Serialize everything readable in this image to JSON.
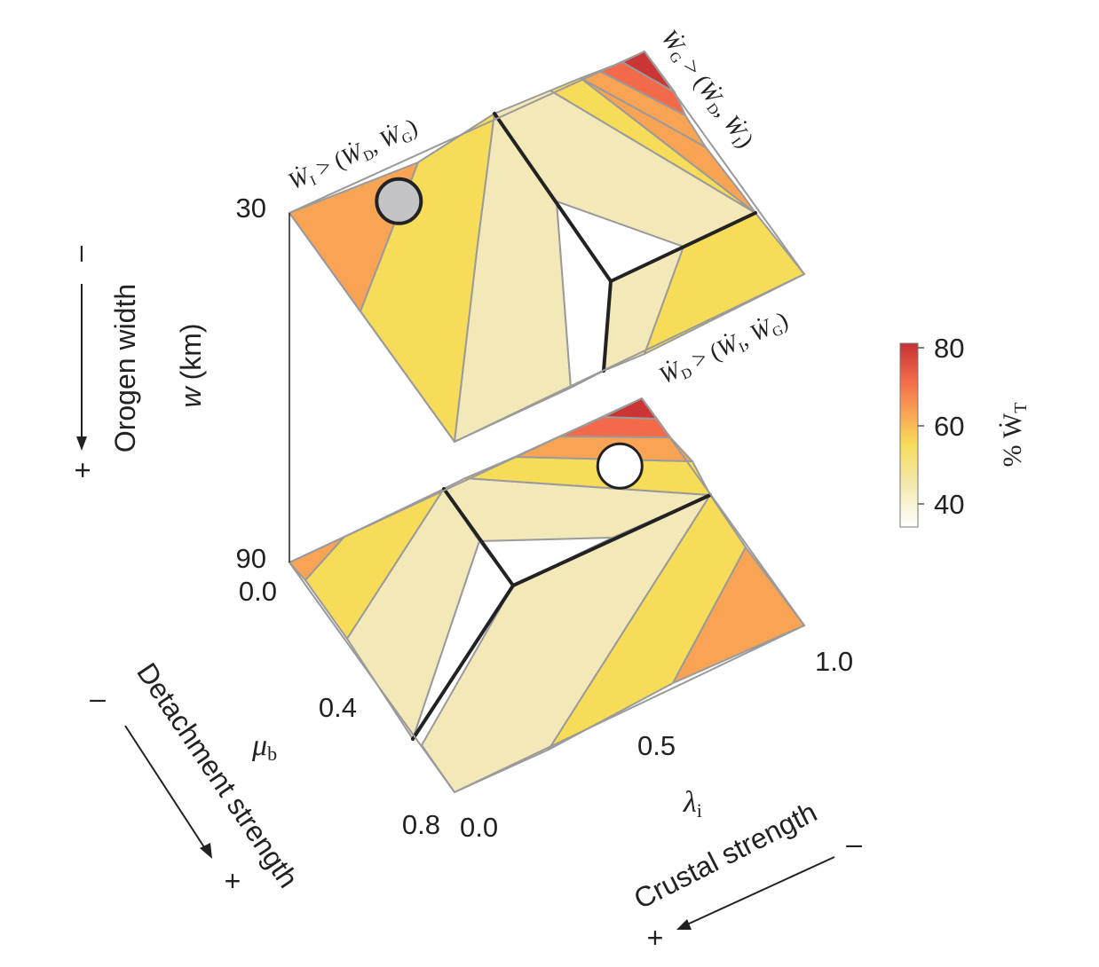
{
  "chart_data": {
    "type": "heatmap",
    "colorbar": {
      "title": "% Ẇ",
      "title_subscript": "T",
      "ticks": [
        "80",
        "60",
        "40"
      ],
      "range": [
        35,
        80
      ],
      "colors": [
        "#f5edc8",
        "#f2e8b8",
        "#f7dc5a",
        "#f9a455",
        "#f26a4a",
        "#cc3535"
      ]
    },
    "axes": {
      "w": {
        "symbol": "w",
        "unit": "(km)",
        "name": "Orogen width",
        "ticks": [
          "30",
          "90"
        ],
        "minus": "–",
        "plus": "+"
      },
      "mu_b": {
        "symbol": "μ",
        "subscript": "b",
        "name": "Detachment strength",
        "ticks": [
          "0.0",
          "0.4",
          "0.8"
        ],
        "minus": "–",
        "plus": "+"
      },
      "lambda_i": {
        "symbol": "λ",
        "subscript": "i",
        "name": "Crustal strength",
        "ticks": [
          "0.0",
          "0.5",
          "1.0"
        ],
        "minus": "–",
        "plus": "+"
      }
    },
    "regions": {
      "internal": {
        "lhs": "Ẇ",
        "lhs_sub": "I",
        "op": " > (",
        "a": "Ẇ",
        "a_sub": "D",
        "b": "Ẇ",
        "b_sub": "G",
        "close": ")"
      },
      "gravitational": {
        "lhs": "Ẇ",
        "lhs_sub": "G",
        "op": " > (",
        "a": "Ẇ",
        "a_sub": "D",
        "b": "Ẇ",
        "b_sub": "I",
        "close": ")"
      },
      "detachment": {
        "lhs": "Ẇ",
        "lhs_sub": "D",
        "op": " > (",
        "a": "Ẇ",
        "a_sub": "I",
        "b": "Ẇ",
        "b_sub": "G",
        "close": ")"
      }
    },
    "panels": [
      {
        "w_km": 30,
        "marker": {
          "mu_b": 0.1,
          "lambda_i": 0.25,
          "fill": "#c4c4c6"
        },
        "bands": [
          {
            "color": "#f9a455",
            "pct": 60
          },
          {
            "color": "#f7dc5a",
            "pct": 50
          },
          {
            "color": "#f2e8b8",
            "pct": 42
          },
          {
            "color": "#ffffff",
            "pct": 35
          },
          {
            "color": "#f2e8b8",
            "pct": 42
          },
          {
            "color": "#f7dc5a",
            "pct": 50
          },
          {
            "color": "#f9a455",
            "pct": 60
          },
          {
            "color": "#f26a4a",
            "pct": 70
          },
          {
            "color": "#cc3535",
            "pct": 80
          }
        ]
      },
      {
        "w_km": 90,
        "marker": {
          "mu_b": 0.15,
          "lambda_i": 0.85,
          "fill": "#ffffff"
        },
        "bands": [
          {
            "color": "#f9a455",
            "pct": 60
          },
          {
            "color": "#f7dc5a",
            "pct": 50
          },
          {
            "color": "#f2e8b8",
            "pct": 42
          },
          {
            "color": "#ffffff",
            "pct": 35
          },
          {
            "color": "#f2e8b8",
            "pct": 42
          },
          {
            "color": "#f7dc5a",
            "pct": 50
          },
          {
            "color": "#f9a455",
            "pct": 60
          },
          {
            "color": "#f26a4a",
            "pct": 70
          },
          {
            "color": "#cc3535",
            "pct": 80
          }
        ]
      }
    ]
  }
}
